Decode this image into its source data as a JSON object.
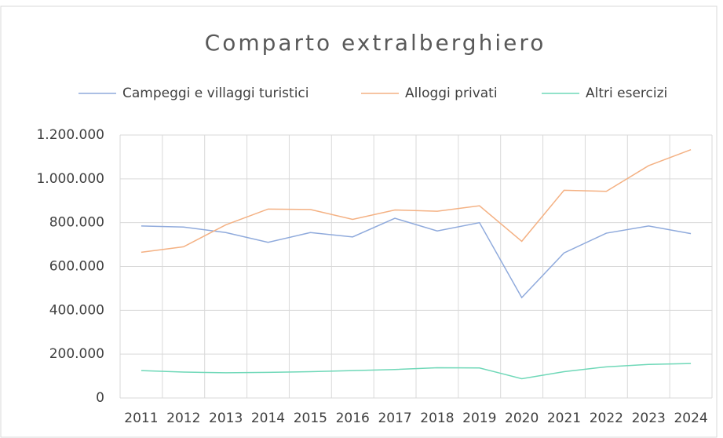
{
  "chart_data": {
    "type": "line",
    "title": "Comparto extralberghiero",
    "categories": [
      "2011",
      "2012",
      "2013",
      "2014",
      "2015",
      "2016",
      "2017",
      "2018",
      "2019",
      "2020",
      "2021",
      "2022",
      "2023",
      "2024"
    ],
    "series": [
      {
        "name": "Campeggi e villaggi turistici",
        "color": "#8faadc",
        "values": [
          785000,
          780000,
          755000,
          710000,
          755000,
          735000,
          820000,
          762000,
          800000,
          458000,
          662000,
          752000,
          785000,
          750000
        ]
      },
      {
        "name": "Alloggi privati",
        "color": "#f4b183",
        "values": [
          665000,
          690000,
          790000,
          862000,
          860000,
          815000,
          858000,
          852000,
          877000,
          715000,
          948000,
          943000,
          1060000,
          1133000
        ]
      },
      {
        "name": "Altri esercizi",
        "color": "#6fd8b8",
        "values": [
          125000,
          118000,
          115000,
          117000,
          120000,
          125000,
          130000,
          138000,
          137000,
          88000,
          120000,
          142000,
          153000,
          157000
        ]
      }
    ],
    "ylim": [
      0,
      1200000
    ],
    "yticks": [
      0,
      {
        "value": 200000,
        "label": "200.000"
      },
      {
        "value": 400000,
        "label": "400.000"
      },
      {
        "value": 600000,
        "label": "600.000"
      },
      {
        "value": 800000,
        "label": "800.000"
      },
      {
        "value": 1000000,
        "label": "1.000.000"
      },
      {
        "value": 1200000,
        "label": "1.200.000"
      }
    ],
    "grid": true
  }
}
